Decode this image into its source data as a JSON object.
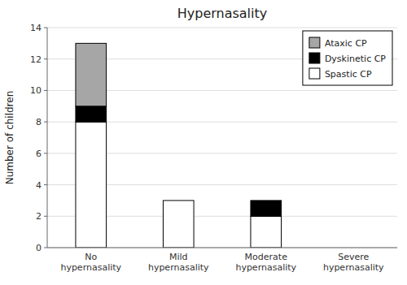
{
  "chart_data": {
    "type": "bar",
    "stacked": true,
    "title": "Hypernasality",
    "ylabel": "Number of children",
    "categories": [
      "No\nhypernasality",
      "Mild\nhypernasality",
      "Moderate\nhypernasality",
      "Severe\nhypernasality"
    ],
    "series": [
      {
        "name": "Spastic CP",
        "color": "#ffffff",
        "values": [
          8,
          3,
          2,
          0
        ]
      },
      {
        "name": "Dyskinetic CP",
        "color": "#000000",
        "values": [
          1,
          0,
          1,
          0
        ]
      },
      {
        "name": "Ataxic CP",
        "color": "#a6a6a6",
        "values": [
          4,
          0,
          0,
          0
        ]
      }
    ],
    "ylim": [
      0,
      14
    ],
    "yticks": [
      0,
      2,
      4,
      6,
      8,
      10,
      12,
      14
    ],
    "grid": true,
    "legend": "upper right"
  }
}
